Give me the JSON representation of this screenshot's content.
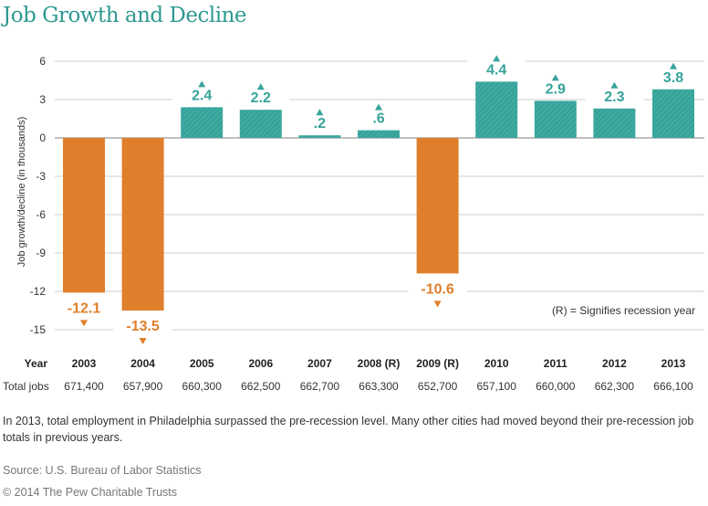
{
  "chart_data": {
    "type": "bar",
    "title": "Job Growth and Decline",
    "ylabel": "Job growth/decline (in thousands)",
    "ylim": [
      -15,
      6
    ],
    "yticks": [
      6,
      3,
      0,
      -3,
      -6,
      -9,
      -12,
      -15
    ],
    "grid": true,
    "categories": [
      "2003",
      "2004",
      "2005",
      "2006",
      "2007",
      "2008 (R)",
      "2009 (R)",
      "2010",
      "2011",
      "2012",
      "2013"
    ],
    "values": [
      -12.1,
      -13.5,
      2.4,
      2.2,
      0.2,
      0.6,
      -10.6,
      4.4,
      2.9,
      2.3,
      3.8
    ],
    "data_labels": [
      "-12.1",
      "-13.5",
      "2.4",
      "2.2",
      ".2",
      ".6",
      "-10.6",
      "4.4",
      "2.9",
      "2.3",
      "3.8"
    ],
    "row_header_year": "Year",
    "row_header_jobs": "Total jobs",
    "total_jobs": [
      "671,400",
      "657,900",
      "660,300",
      "662,500",
      "662,700",
      "663,300",
      "652,700",
      "657,100",
      "660,000",
      "662,300",
      "666,100"
    ],
    "annotation": "(R) = Signifies recession year",
    "colors": {
      "growth": "#36a39a",
      "decline": "#e07f2b",
      "title": "#2e9990"
    }
  },
  "note": "In 2013, total employment in Philadelphia surpassed the pre-recession level. Many other cities had moved beyond their pre-recession job totals in previous years.",
  "source": "Source: U.S. Bureau of Labor Statistics",
  "copyright": "© 2014 The Pew Charitable Trusts"
}
